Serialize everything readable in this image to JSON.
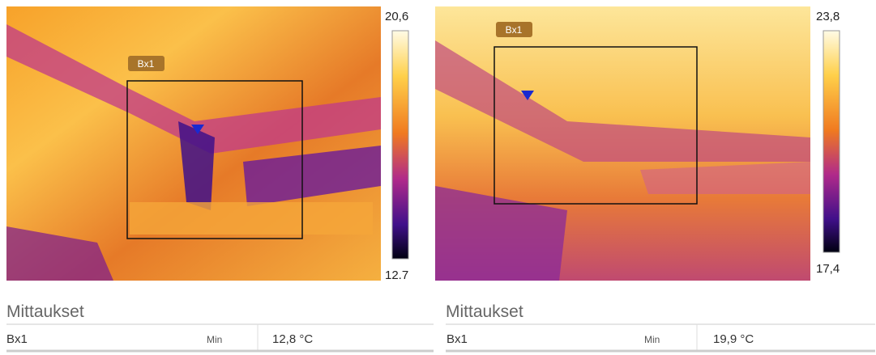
{
  "panels": [
    {
      "box_label": "Bx1",
      "scale_max": "20,6",
      "scale_min": "12.7",
      "section_title": "Mittaukset",
      "row": {
        "name": "Bx1",
        "kind": "Min",
        "value": "12,8 °C"
      }
    },
    {
      "box_label": "Bx1",
      "scale_max": "23,8",
      "scale_min": "17,4",
      "section_title": "Mittaukset",
      "row": {
        "name": "Bx1",
        "kind": "Min",
        "value": "19,9 °C"
      }
    }
  ]
}
